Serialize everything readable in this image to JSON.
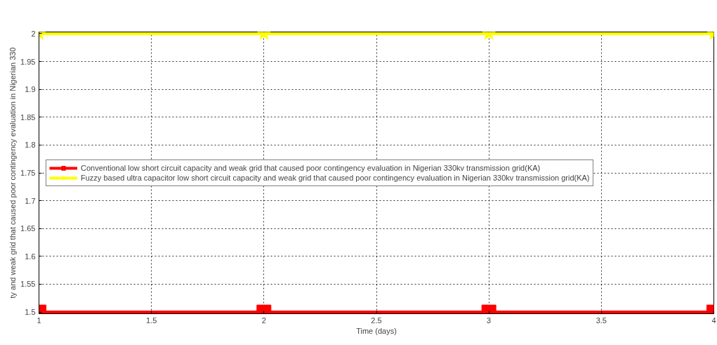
{
  "chart_data": {
    "type": "line",
    "xlabel": "Time (days)",
    "ylabel": "ty and weak grid that caused poor contingency evaluation in Nigerian 330",
    "x": [
      1,
      2,
      3,
      4
    ],
    "series": [
      {
        "name": "Conventional low short circuit capacity and weak grid that caused poor contingency evaluation in Nigerian 330kv transmission grid(KA)",
        "color": "#ff0000",
        "marker": "square",
        "values": [
          1.5,
          1.5,
          1.5,
          1.5
        ]
      },
      {
        "name": "Fuzzy based ultra capacitor low short circuit capacity and weak grid that caused poor contingency evaluation in Nigerian 330kv transmission grid(KA)",
        "color": "#ffff00",
        "marker": "star",
        "values": [
          2,
          2,
          2,
          2
        ]
      }
    ],
    "xlim": [
      1,
      4
    ],
    "xticks": [
      1,
      1.5,
      2,
      2.5,
      3,
      3.5,
      4
    ],
    "ylim": [
      1.497,
      2.003
    ],
    "yticks": [
      1.5,
      1.55,
      1.6,
      1.65,
      1.7,
      1.75,
      1.8,
      1.85,
      1.9,
      1.95,
      2
    ],
    "grid": true,
    "legend": "left",
    "line_style": "solid"
  }
}
